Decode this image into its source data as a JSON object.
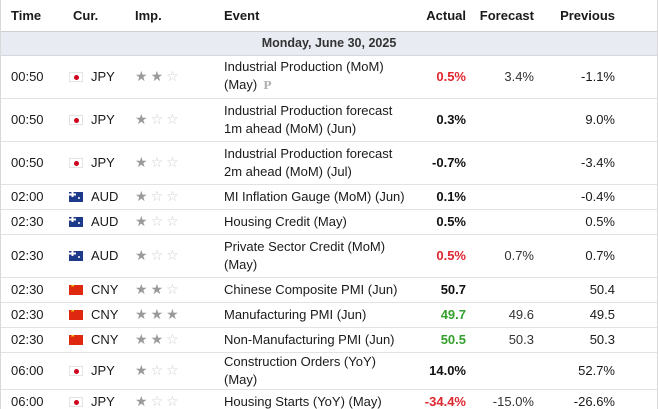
{
  "headers": {
    "time": "Time",
    "currency": "Cur.",
    "importance": "Imp.",
    "event": "Event",
    "actual": "Actual",
    "forecast": "Forecast",
    "previous": "Previous"
  },
  "date_label": "Monday, June 30, 2025",
  "colors": {
    "negative": "#e0262e",
    "positive": "#35a02d",
    "neutral": "#111111",
    "star_on": "#9a9a9a",
    "star_off": "#cfcfcf"
  },
  "events": [
    {
      "time": "00:50",
      "currency": "JPY",
      "flag": "jp",
      "importance": 2,
      "event": "Industrial Production (MoM) (May)",
      "preliminary_mark": "P",
      "actual": "0.5%",
      "actual_trend": "neg",
      "forecast": "3.4%",
      "previous": "-1.1%"
    },
    {
      "time": "00:50",
      "currency": "JPY",
      "flag": "jp",
      "importance": 1,
      "event": "Industrial Production forecast 1m ahead (MoM) (Jun)",
      "actual": "0.3%",
      "actual_trend": "neu",
      "forecast": "",
      "previous": "9.0%"
    },
    {
      "time": "00:50",
      "currency": "JPY",
      "flag": "jp",
      "importance": 1,
      "event": "Industrial Production forecast 2m ahead (MoM) (Jul)",
      "actual": "-0.7%",
      "actual_trend": "neu",
      "forecast": "",
      "previous": "-3.4%"
    },
    {
      "time": "02:00",
      "currency": "AUD",
      "flag": "au",
      "importance": 1,
      "event": "MI Inflation Gauge (MoM) (Jun)",
      "actual": "0.1%",
      "actual_trend": "neu",
      "forecast": "",
      "previous": "-0.4%"
    },
    {
      "time": "02:30",
      "currency": "AUD",
      "flag": "au",
      "importance": 1,
      "event": "Housing Credit (May)",
      "actual": "0.5%",
      "actual_trend": "neu",
      "forecast": "",
      "previous": "0.5%"
    },
    {
      "time": "02:30",
      "currency": "AUD",
      "flag": "au",
      "importance": 1,
      "event": "Private Sector Credit (MoM) (May)",
      "actual": "0.5%",
      "actual_trend": "neg",
      "forecast": "0.7%",
      "previous": "0.7%"
    },
    {
      "time": "02:30",
      "currency": "CNY",
      "flag": "cn",
      "importance": 2,
      "event": "Chinese Composite PMI (Jun)",
      "actual": "50.7",
      "actual_trend": "neu",
      "forecast": "",
      "previous": "50.4"
    },
    {
      "time": "02:30",
      "currency": "CNY",
      "flag": "cn",
      "importance": 3,
      "event": "Manufacturing PMI (Jun)",
      "actual": "49.7",
      "actual_trend": "pos",
      "forecast": "49.6",
      "previous": "49.5"
    },
    {
      "time": "02:30",
      "currency": "CNY",
      "flag": "cn",
      "importance": 2,
      "event": "Non-Manufacturing PMI (Jun)",
      "actual": "50.5",
      "actual_trend": "pos",
      "forecast": "50.3",
      "previous": "50.3"
    },
    {
      "time": "06:00",
      "currency": "JPY",
      "flag": "jp",
      "importance": 1,
      "event": "Construction Orders (YoY) (May)",
      "actual": "14.0%",
      "actual_trend": "neu",
      "forecast": "",
      "previous": "52.7%"
    },
    {
      "time": "06:00",
      "currency": "JPY",
      "flag": "jp",
      "importance": 1,
      "event": "Housing Starts (YoY) (May)",
      "actual": "-34.4%",
      "actual_trend": "neg",
      "forecast": "-15.0%",
      "previous": "-26.6%"
    }
  ]
}
